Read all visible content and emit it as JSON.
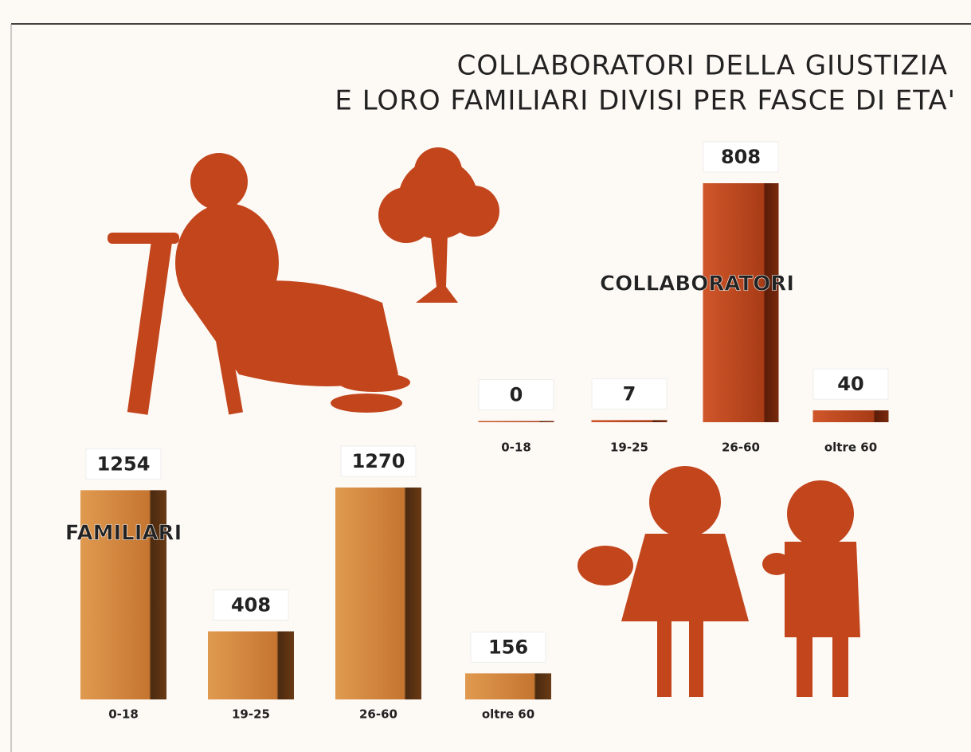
{
  "title": [
    "COLLABORATORI DELLA GIUSTIZIA",
    "E LORO FAMILIARI DIVISI PER FASCE DI ETA'"
  ],
  "chart_data": [
    {
      "type": "bar",
      "title": "COLLABORATORI",
      "categories": [
        "0-18",
        "19-25",
        "26-60",
        "oltre 60"
      ],
      "values": [
        0,
        7,
        808,
        40
      ],
      "color": "#c2451c"
    },
    {
      "type": "bar",
      "title": "FAMILIARI",
      "categories": [
        "0-18",
        "19-25",
        "26-60",
        "oltre 60"
      ],
      "values": [
        1254,
        408,
        1270,
        156
      ],
      "color": "#d98a3e"
    }
  ]
}
